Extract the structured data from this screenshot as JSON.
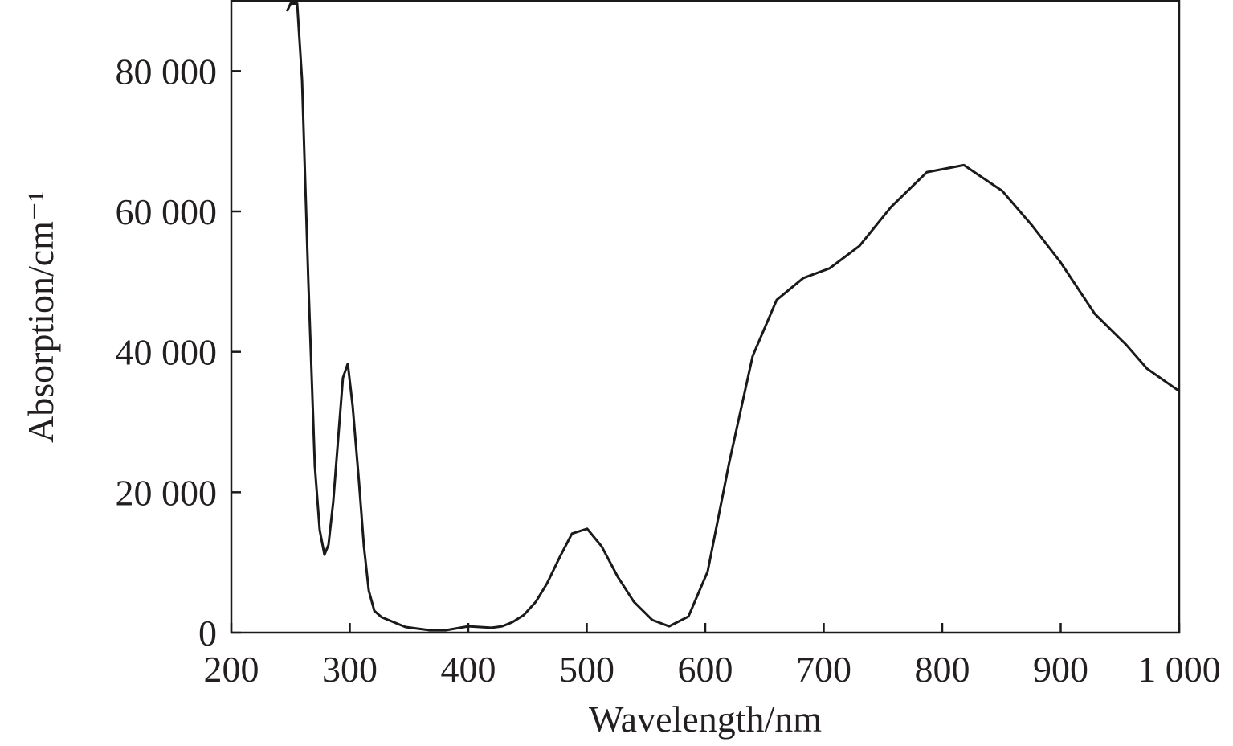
{
  "chart_data": {
    "type": "line",
    "xlabel": "Wavelength/nm",
    "ylabel": "Absorption/cm⁻¹",
    "color": "#1a1a1a",
    "x": [
      247,
      250,
      255.6,
      259.7,
      265,
      270.5,
      274.6,
      278.6,
      282,
      286,
      294.2,
      298.3,
      302.4,
      307.8,
      311.9,
      316,
      320.7,
      326.8,
      347,
      367.5,
      381,
      400,
      419.7,
      428.5,
      437.3,
      446.8,
      457,
      466.4,
      477.3,
      487.5,
      500.3,
      512.5,
      526,
      539.7,
      555.3,
      569.5,
      585.8,
      602,
      620.3,
      640,
      660.3,
      682.7,
      705,
      730.2,
      756.6,
      787.1,
      818.3,
      850.8,
      875.3,
      899.7,
      928.8,
      955.3,
      972.9,
      1000
    ],
    "values": [
      88500,
      89600,
      89600,
      78700,
      50100,
      23700,
      14600,
      11100,
      12500,
      18600,
      36300,
      38300,
      32300,
      21400,
      12300,
      6000,
      3100,
      2200,
      800,
      340,
      340,
      900,
      700,
      900,
      1500,
      2500,
      4400,
      7000,
      10800,
      14100,
      14800,
      12300,
      8000,
      4400,
      1800,
      900,
      2300,
      8700,
      24300,
      39400,
      47400,
      50500,
      51900,
      55100,
      60600,
      65600,
      66600,
      62900,
      58100,
      52800,
      45400,
      41000,
      37600,
      34400
    ],
    "xlim": [
      200,
      1000
    ],
    "ylim": [
      0,
      90000
    ],
    "xticks": [
      200,
      300,
      400,
      500,
      600,
      700,
      800,
      900,
      {
        "value": 1000,
        "label": "1 000"
      }
    ],
    "yticks": [
      0,
      {
        "value": 20000,
        "label": "20 000"
      },
      {
        "value": 40000,
        "label": "40 000"
      },
      {
        "value": 60000,
        "label": "60 000"
      },
      {
        "value": 80000,
        "label": "80 000"
      }
    ]
  }
}
